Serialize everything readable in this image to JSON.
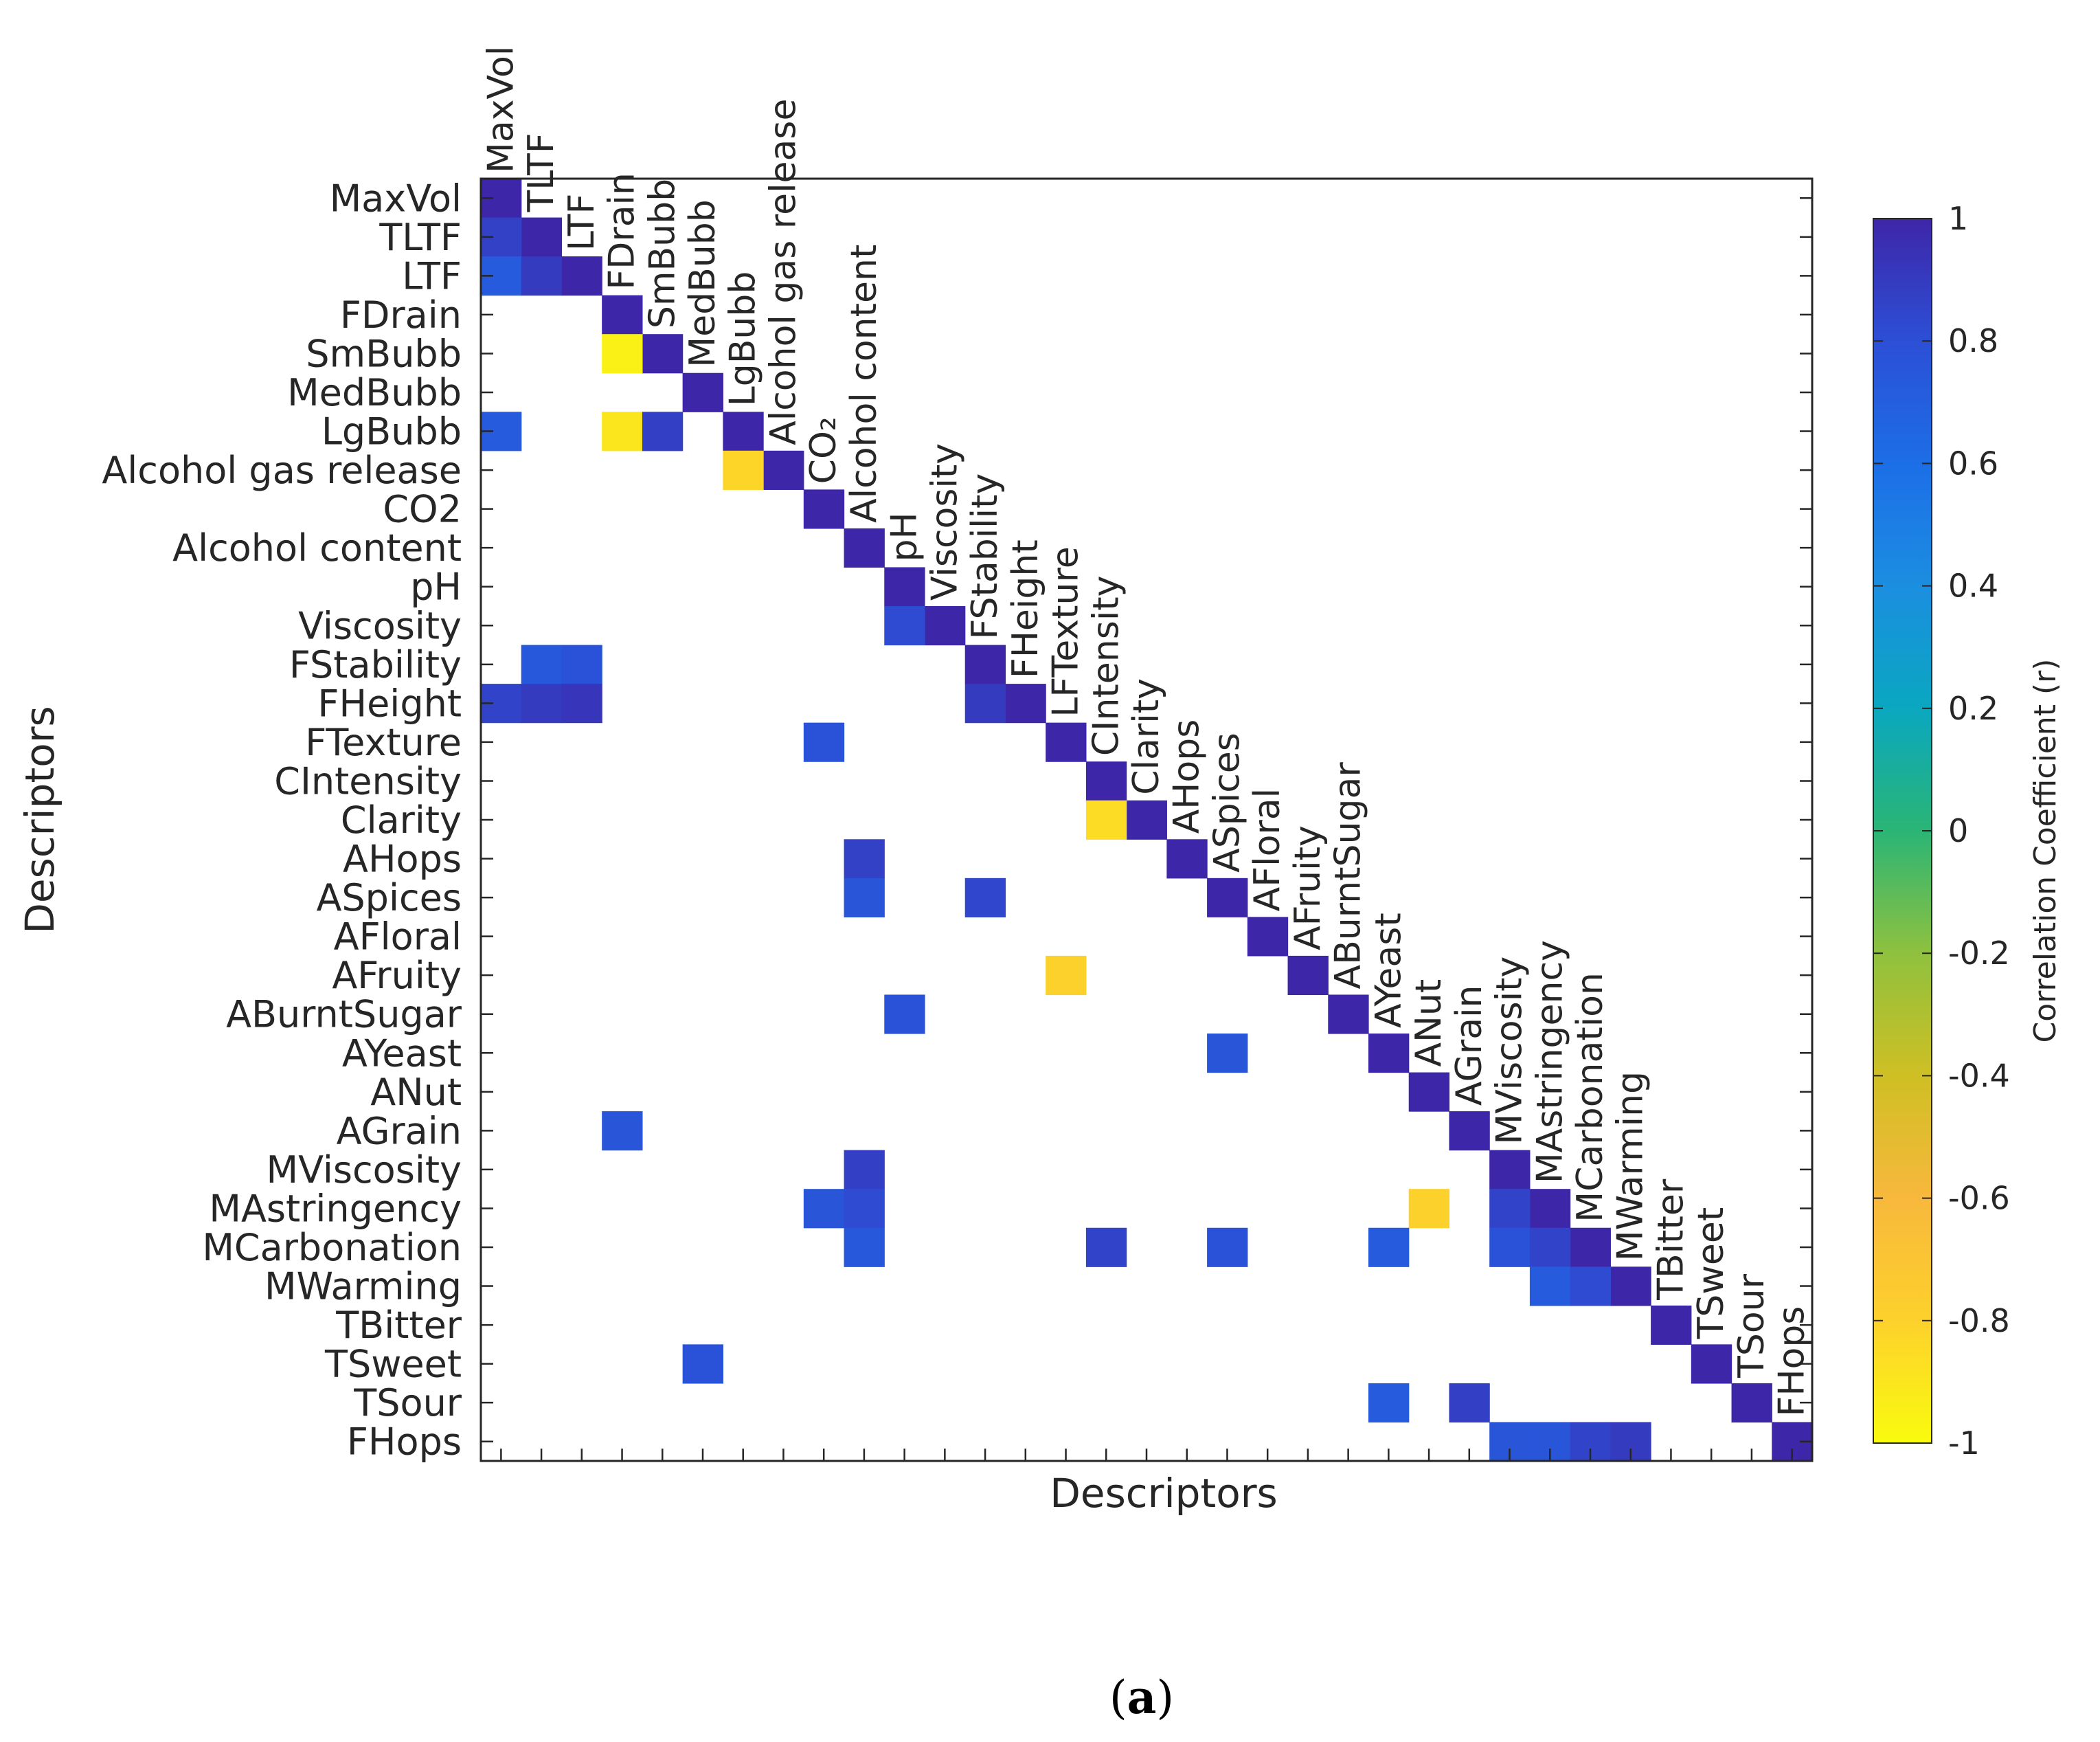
{
  "chart_data": {
    "type": "heatmap",
    "xlabel": "Descriptors",
    "ylabel": "Descriptors",
    "caption_letter": "a",
    "labels": [
      "MaxVol",
      "TLTF",
      "LTF",
      "FDrain",
      "SmBubb",
      "MedBubb",
      "LgBubb",
      "Alcohol gas release",
      "CO2",
      "Alcohol content",
      "pH",
      "Viscosity",
      "FStability",
      "FHeight",
      "FTexture",
      "CIntensity",
      "Clarity",
      "AHops",
      "ASpices",
      "AFloral",
      "AFruity",
      "ABurntSugar",
      "AYeast",
      "ANut",
      "AGrain",
      "MViscosity",
      "MAstringency",
      "MCarbonation",
      "MWarming",
      "TBitter",
      "TSweet",
      "TSour",
      "FHops"
    ],
    "top_labels": [
      "MaxVol",
      "TLTF",
      "LTF",
      "FDrain",
      "SmBubb",
      "MedBubb",
      "LgBubb",
      "Alcohol gas release",
      "CO₂",
      "Alcohol content",
      "pH",
      "Viscosity",
      "FStability",
      "FHeight",
      "LFTexture",
      "CIntensity",
      "Clarity",
      "AHops",
      "ASpices",
      "AFloral",
      "AFruity",
      "ABurntSugar",
      "AYeast",
      "ANut",
      "AGrain",
      "MViscosity",
      "MAstringency",
      "MCarbonation",
      "MWarming",
      "TBitter",
      "TSweet",
      "TSour",
      "FHops"
    ],
    "colorbar": {
      "label": "Correlation Coefficient (r)",
      "range": [
        -1,
        1
      ],
      "ticks": [
        "1",
        "0.8",
        "0.6",
        "0.4",
        "0.2",
        "0",
        "-0.2",
        "-0.4",
        "-0.6",
        "-0.8",
        "-1"
      ]
    },
    "cells": [
      {
        "row": "TLTF",
        "col": "MaxVol",
        "r": 0.87
      },
      {
        "row": "LTF",
        "col": "MaxVol",
        "r": 0.72
      },
      {
        "row": "LTF",
        "col": "TLTF",
        "r": 0.9
      },
      {
        "row": "SmBubb",
        "col": "FDrain",
        "r": -0.95
      },
      {
        "row": "LgBubb",
        "col": "MaxVol",
        "r": 0.72
      },
      {
        "row": "LgBubb",
        "col": "FDrain",
        "r": -0.9
      },
      {
        "row": "LgBubb",
        "col": "SmBubb",
        "r": 0.88
      },
      {
        "row": "Alcohol gas release",
        "col": "LgBubb",
        "r": -0.82
      },
      {
        "row": "Viscosity",
        "col": "pH",
        "r": 0.82
      },
      {
        "row": "FStability",
        "col": "TLTF",
        "r": 0.74
      },
      {
        "row": "FStability",
        "col": "LTF",
        "r": 0.78
      },
      {
        "row": "FHeight",
        "col": "MaxVol",
        "r": 0.86
      },
      {
        "row": "FHeight",
        "col": "TLTF",
        "r": 0.9
      },
      {
        "row": "FHeight",
        "col": "LTF",
        "r": 0.92
      },
      {
        "row": "FHeight",
        "col": "FStability",
        "r": 0.9
      },
      {
        "row": "FTexture",
        "col": "CO2",
        "r": 0.78
      },
      {
        "row": "Clarity",
        "col": "CIntensity",
        "r": -0.85
      },
      {
        "row": "AHops",
        "col": "Alcohol content",
        "r": 0.87
      },
      {
        "row": "ASpices",
        "col": "Alcohol content",
        "r": 0.76
      },
      {
        "row": "ASpices",
        "col": "FStability",
        "r": 0.84
      },
      {
        "row": "AFruity",
        "col": "FTexture",
        "r": -0.8
      },
      {
        "row": "ABurntSugar",
        "col": "pH",
        "r": 0.78
      },
      {
        "row": "AYeast",
        "col": "ASpices",
        "r": 0.76
      },
      {
        "row": "AGrain",
        "col": "FDrain",
        "r": 0.76
      },
      {
        "row": "MViscosity",
        "col": "Alcohol content",
        "r": 0.88
      },
      {
        "row": "MAstringency",
        "col": "CO2",
        "r": 0.76
      },
      {
        "row": "MAstringency",
        "col": "Alcohol content",
        "r": 0.82
      },
      {
        "row": "MAstringency",
        "col": "ANut",
        "r": -0.8
      },
      {
        "row": "MAstringency",
        "col": "MViscosity",
        "r": 0.86
      },
      {
        "row": "MCarbonation",
        "col": "Alcohol content",
        "r": 0.74
      },
      {
        "row": "MCarbonation",
        "col": "CIntensity",
        "r": 0.86
      },
      {
        "row": "MCarbonation",
        "col": "ASpices",
        "r": 0.78
      },
      {
        "row": "MCarbonation",
        "col": "AYeast",
        "r": 0.72
      },
      {
        "row": "MCarbonation",
        "col": "MViscosity",
        "r": 0.78
      },
      {
        "row": "MCarbonation",
        "col": "MAstringency",
        "r": 0.86
      },
      {
        "row": "MWarming",
        "col": "MAstringency",
        "r": 0.72
      },
      {
        "row": "MWarming",
        "col": "MCarbonation",
        "r": 0.82
      },
      {
        "row": "TSweet",
        "col": "MedBubb",
        "r": 0.78
      },
      {
        "row": "TSour",
        "col": "AYeast",
        "r": 0.72
      },
      {
        "row": "TSour",
        "col": "AGrain",
        "r": 0.88
      },
      {
        "row": "FHops",
        "col": "MViscosity",
        "r": 0.76
      },
      {
        "row": "FHops",
        "col": "MAstringency",
        "r": 0.76
      },
      {
        "row": "FHops",
        "col": "MCarbonation",
        "r": 0.86
      },
      {
        "row": "FHops",
        "col": "MWarming",
        "r": 0.9
      }
    ]
  }
}
